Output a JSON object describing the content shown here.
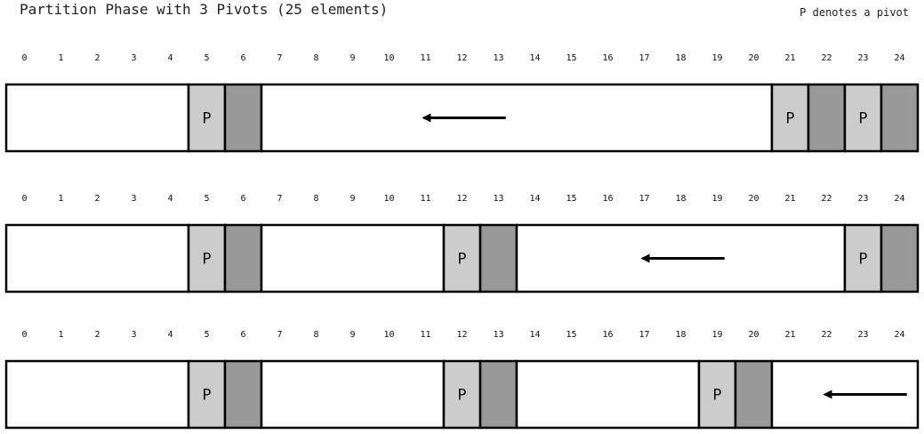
{
  "title": "Partition Phase with 3 Pivots (25 elements)",
  "note": "P denotes a pivot",
  "pivot_symbol": "P",
  "indices": [
    "0",
    "1",
    "2",
    "3",
    "4",
    "5",
    "6",
    "7",
    "8",
    "9",
    "10",
    "11",
    "12",
    "13",
    "14",
    "15",
    "16",
    "17",
    "18",
    "19",
    "20",
    "21",
    "22",
    "23",
    "24"
  ],
  "colors": {
    "pivot": "#cccccc",
    "filled": "#999999",
    "empty": "#ffffff",
    "stroke": "#000000"
  },
  "rows": [
    {
      "segments": [
        {
          "start": 0,
          "end": 4,
          "kind": "empty"
        },
        {
          "start": 5,
          "end": 5,
          "kind": "pivot"
        },
        {
          "start": 6,
          "end": 6,
          "kind": "filled"
        },
        {
          "start": 7,
          "end": 20,
          "kind": "empty"
        },
        {
          "start": 21,
          "end": 21,
          "kind": "pivot"
        },
        {
          "start": 22,
          "end": 22,
          "kind": "filled"
        },
        {
          "start": 23,
          "end": 23,
          "kind": "pivot"
        },
        {
          "start": 24,
          "end": 24,
          "kind": "filled"
        }
      ],
      "arrow": {
        "from": 13,
        "to": 11,
        "direction": "left"
      }
    },
    {
      "segments": [
        {
          "start": 0,
          "end": 4,
          "kind": "empty"
        },
        {
          "start": 5,
          "end": 5,
          "kind": "pivot"
        },
        {
          "start": 6,
          "end": 6,
          "kind": "filled"
        },
        {
          "start": 7,
          "end": 11,
          "kind": "empty"
        },
        {
          "start": 12,
          "end": 12,
          "kind": "pivot"
        },
        {
          "start": 13,
          "end": 13,
          "kind": "filled"
        },
        {
          "start": 14,
          "end": 22,
          "kind": "empty"
        },
        {
          "start": 23,
          "end": 23,
          "kind": "pivot"
        },
        {
          "start": 24,
          "end": 24,
          "kind": "filled"
        }
      ],
      "arrow": {
        "from": 19,
        "to": 17,
        "direction": "left"
      }
    },
    {
      "segments": [
        {
          "start": 0,
          "end": 4,
          "kind": "empty"
        },
        {
          "start": 5,
          "end": 5,
          "kind": "pivot"
        },
        {
          "start": 6,
          "end": 6,
          "kind": "filled"
        },
        {
          "start": 7,
          "end": 11,
          "kind": "empty"
        },
        {
          "start": 12,
          "end": 12,
          "kind": "pivot"
        },
        {
          "start": 13,
          "end": 13,
          "kind": "filled"
        },
        {
          "start": 14,
          "end": 18,
          "kind": "empty"
        },
        {
          "start": 19,
          "end": 19,
          "kind": "pivot"
        },
        {
          "start": 20,
          "end": 20,
          "kind": "filled"
        },
        {
          "start": 21,
          "end": 24,
          "kind": "empty"
        }
      ],
      "arrow": {
        "from": 24,
        "to": 22,
        "direction": "left"
      }
    }
  ]
}
